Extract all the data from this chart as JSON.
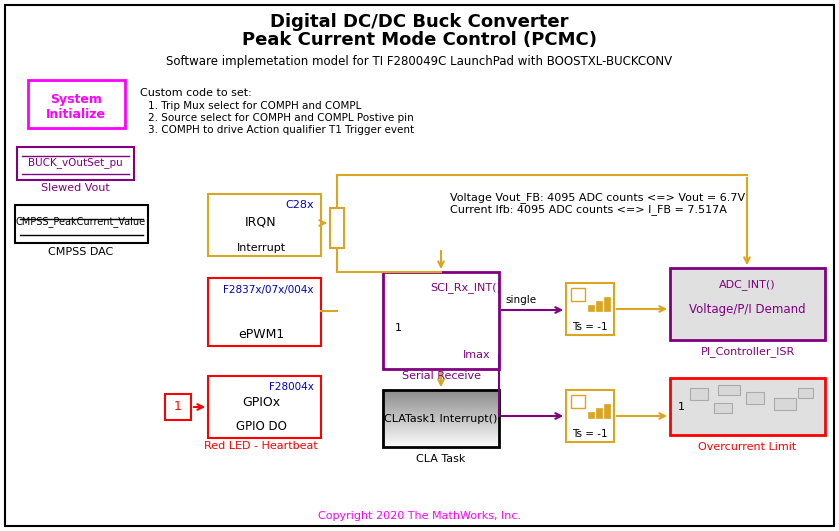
{
  "title_line1": "Digital DC/DC Buck Converter",
  "title_line2": "Peak Current Mode Control (PCMC)",
  "subtitle": "Software implemetation model for TI F280049C LaunchPad with BOOSTXL-BUCKCONV",
  "copyright": "Copyright 2020 The MathWorks, Inc.",
  "annotation_line1": "Voltage Vout_FB: 4095 ADC counts <=> Vout = 6.7V",
  "annotation_line2": "Current Ifb: 4095 ADC counts <=> I_FB = 7.517A",
  "custom_code_title": "Custom code to set:",
  "custom_code_items": [
    "1. Trip Mux select for COMPH and COMPL",
    "2. Source select for COMPH and COMPL Postive pin",
    "3. COMPH to drive Action qualifier T1 Trigger event"
  ],
  "magenta": "#FF00FF",
  "purple": "#800080",
  "gold": "#DAA520",
  "red": "#FF0000",
  "blue": "#0000CC",
  "black": "#000000",
  "white": "#FFFFFF",
  "lgray": "#E0E0E0",
  "dgray": "#AAAAAA"
}
